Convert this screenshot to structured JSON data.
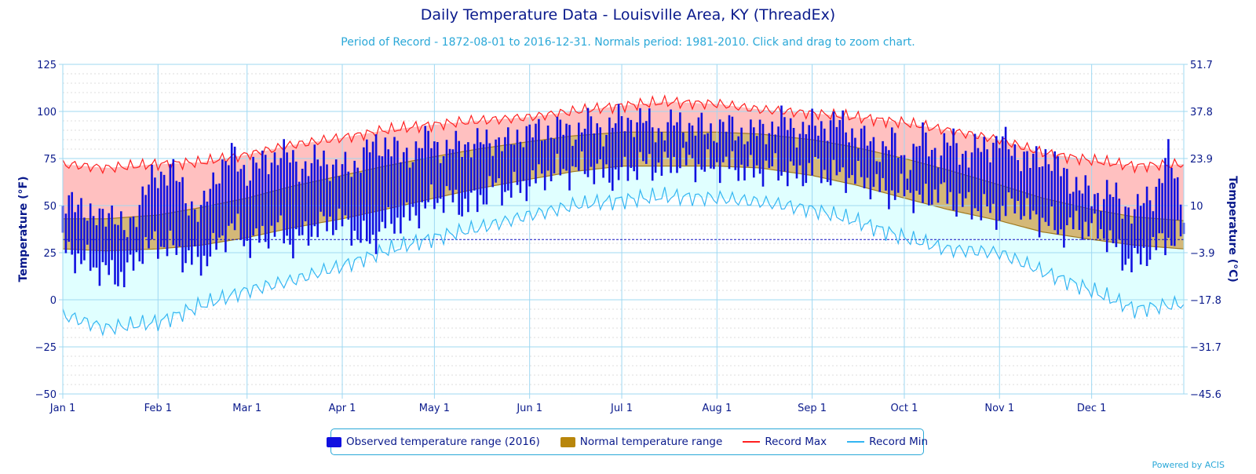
{
  "title": "Daily Temperature Data - Louisville Area, KY (ThreadEx)",
  "subtitle": "Period of Record - 1872-08-01 to 2016-12-31. Normals period: 1981-2010. Click and drag to zoom chart.",
  "powered_by": "Powered by ACIS",
  "legend": {
    "observed": "Observed temperature range (2016)",
    "normal": "Normal temperature range",
    "record_max": "Record Max",
    "record_min": "Record Min"
  },
  "colors": {
    "observed": "#1010e0",
    "normal_fill": "#d4b878",
    "normal_swatch": "#b8860b",
    "record_max_line": "#ff2020",
    "record_max_fill": "#ffc0c0",
    "record_min_line": "#33b5f2",
    "record_min_fill": "#e0ffff",
    "freezing_line": "#1010c0",
    "axis_text": "#0a1a8c"
  },
  "chart_data": {
    "type": "area",
    "xlabel": "",
    "ylabel": "Temperature (°F)",
    "ylabel_right": "Temperature (°C)",
    "ylim": [
      -50,
      125
    ],
    "y_ticks_left": [
      "125",
      "100",
      "75",
      "50",
      "25",
      "0",
      "−25",
      "−50"
    ],
    "y_ticks_right": [
      "51.7",
      "37.8",
      "23.9",
      "10",
      "−3.9",
      "−17.8",
      "−31.7",
      "−45.6"
    ],
    "x_tick_labels": [
      "Jan 1",
      "Feb 1",
      "Mar 1",
      "Apr 1",
      "May 1",
      "Jun 1",
      "Jul 1",
      "Aug 1",
      "Sep 1",
      "Oct 1",
      "Nov 1",
      "Dec 1"
    ],
    "x_tick_days": [
      1,
      32,
      61,
      92,
      122,
      153,
      183,
      214,
      245,
      275,
      306,
      336
    ],
    "days_in_year": 366,
    "freezing_line_f": 32,
    "series": [
      {
        "name": "Record Max",
        "x": [
          1,
          15,
          32,
          46,
          61,
          75,
          92,
          106,
          122,
          136,
          153,
          167,
          183,
          197,
          214,
          228,
          245,
          259,
          275,
          289,
          306,
          320,
          336,
          350,
          366
        ],
        "values": [
          72,
          70,
          72,
          73,
          77,
          82,
          86,
          90,
          93,
          95,
          97,
          100,
          103,
          105,
          104,
          101,
          99,
          97,
          94,
          90,
          85,
          78,
          74,
          71,
          72
        ]
      },
      {
        "name": "Normal High",
        "x": [
          1,
          15,
          32,
          46,
          61,
          75,
          92,
          106,
          122,
          136,
          153,
          167,
          183,
          197,
          214,
          228,
          245,
          259,
          275,
          289,
          306,
          320,
          336,
          350,
          366
        ],
        "values": [
          43,
          43,
          45,
          49,
          54,
          60,
          66,
          71,
          76,
          80,
          84,
          87,
          89,
          89,
          89,
          88,
          85,
          81,
          75,
          69,
          61,
          54,
          48,
          44,
          42
        ]
      },
      {
        "name": "Normal Low",
        "x": [
          1,
          15,
          32,
          46,
          61,
          75,
          92,
          106,
          122,
          136,
          153,
          167,
          183,
          197,
          214,
          228,
          245,
          259,
          275,
          289,
          306,
          320,
          336,
          350,
          366
        ],
        "values": [
          27,
          26,
          27,
          29,
          33,
          38,
          43,
          48,
          54,
          59,
          64,
          68,
          71,
          71,
          71,
          70,
          66,
          61,
          54,
          48,
          42,
          36,
          32,
          29,
          27
        ]
      },
      {
        "name": "Record Min",
        "x": [
          1,
          15,
          32,
          46,
          61,
          75,
          92,
          106,
          122,
          136,
          153,
          167,
          183,
          197,
          214,
          228,
          245,
          259,
          275,
          289,
          306,
          320,
          336,
          350,
          366
        ],
        "values": [
          -8,
          -15,
          -12,
          -3,
          5,
          10,
          18,
          26,
          33,
          38,
          45,
          50,
          53,
          55,
          54,
          52,
          48,
          42,
          33,
          27,
          25,
          15,
          5,
          -5,
          -2
        ]
      }
    ],
    "observed_2016": {
      "name": "Observed temperature range (2016)",
      "x": [
        1,
        6,
        11,
        16,
        21,
        26,
        31,
        36,
        41,
        46,
        51,
        56,
        61,
        66,
        71,
        76,
        81,
        86,
        91,
        96,
        101,
        106,
        111,
        116,
        121,
        126,
        131,
        136,
        141,
        146,
        151,
        156,
        161,
        166,
        171,
        176,
        181,
        186,
        191,
        196,
        201,
        206,
        211,
        216,
        221,
        226,
        231,
        236,
        241,
        246,
        251,
        256,
        261,
        266,
        271,
        276,
        281,
        286,
        291,
        296,
        301,
        306,
        311,
        316,
        321,
        326,
        331,
        336,
        341,
        346,
        351,
        356,
        361,
        366
      ],
      "low": [
        28,
        22,
        18,
        14,
        12,
        25,
        30,
        28,
        22,
        20,
        28,
        40,
        30,
        33,
        38,
        30,
        36,
        40,
        42,
        36,
        30,
        40,
        42,
        46,
        52,
        55,
        50,
        52,
        60,
        58,
        60,
        65,
        68,
        68,
        70,
        68,
        65,
        70,
        72,
        70,
        74,
        72,
        70,
        72,
        70,
        68,
        70,
        68,
        66,
        70,
        66,
        66,
        64,
        60,
        56,
        58,
        52,
        58,
        52,
        50,
        48,
        45,
        52,
        44,
        42,
        36,
        40,
        38,
        34,
        22,
        20,
        28,
        32,
        34
      ],
      "high": [
        46,
        55,
        40,
        50,
        34,
        52,
        65,
        70,
        55,
        45,
        68,
        76,
        68,
        72,
        78,
        74,
        70,
        76,
        68,
        72,
        80,
        84,
        76,
        80,
        86,
        78,
        84,
        82,
        86,
        82,
        90,
        88,
        92,
        88,
        94,
        90,
        94,
        96,
        94,
        90,
        94,
        92,
        90,
        92,
        90,
        88,
        92,
        94,
        90,
        92,
        94,
        92,
        86,
        80,
        84,
        72,
        86,
        78,
        84,
        76,
        82,
        84,
        80,
        72,
        78,
        68,
        62,
        54,
        58,
        50,
        48,
        56,
        76,
        50
      ]
    }
  }
}
